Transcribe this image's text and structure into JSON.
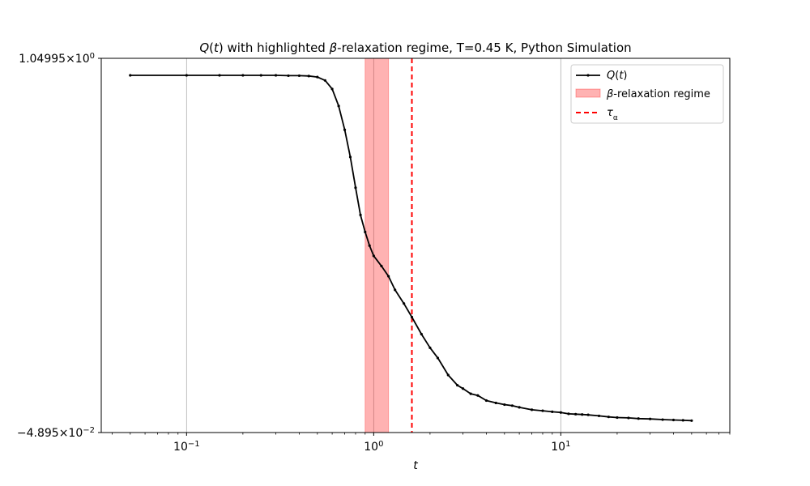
{
  "chart_data": {
    "type": "line",
    "title": "Q(t) with highlighted β-relaxation regime, T=0.45 K, Python Simulation",
    "xlabel": "t",
    "ylabel": "",
    "x_scale": "log",
    "xlim": [
      0.035,
      80
    ],
    "ylim": [
      -0.04895,
      1.04995
    ],
    "x_ticks": [
      {
        "value": 0.1,
        "base": "10",
        "exp": "−1"
      },
      {
        "value": 1,
        "base": "10",
        "exp": "0"
      },
      {
        "value": 10,
        "base": "10",
        "exp": "1"
      }
    ],
    "y_ticks": [
      {
        "value": 1.04995,
        "mantissa": "1.04995",
        "base": "10",
        "exp": "0"
      },
      {
        "value": -0.04895,
        "mantissa": "−4.895",
        "base": "10",
        "exp": "−2"
      }
    ],
    "grid": "x-major",
    "legend_position": "top-right",
    "series": [
      {
        "name": "Q(t)",
        "color": "#000000",
        "x": [
          0.05,
          0.1,
          0.15,
          0.2,
          0.25,
          0.3,
          0.35,
          0.4,
          0.45,
          0.5,
          0.55,
          0.6,
          0.65,
          0.7,
          0.75,
          0.8,
          0.85,
          0.9,
          0.95,
          1.0,
          1.1,
          1.2,
          1.3,
          1.45,
          1.6,
          1.8,
          2.0,
          2.2,
          2.5,
          2.8,
          3.0,
          3.3,
          3.6,
          4.0,
          4.5,
          5.0,
          5.5,
          6.0,
          7.0,
          8.0,
          9.0,
          10.0,
          11.0,
          12.0,
          13.0,
          14.0,
          16.0,
          18.0,
          20.0,
          23.0,
          26.0,
          30.0,
          35.0,
          40.0,
          45.0,
          50.0
        ],
        "y": [
          1.0,
          1.0,
          1.0,
          1.0,
          1.0,
          1.0,
          0.999,
          0.999,
          0.998,
          0.995,
          0.985,
          0.96,
          0.91,
          0.84,
          0.76,
          0.67,
          0.59,
          0.54,
          0.5,
          0.47,
          0.44,
          0.41,
          0.37,
          0.33,
          0.29,
          0.24,
          0.2,
          0.17,
          0.12,
          0.09,
          0.08,
          0.065,
          0.06,
          0.045,
          0.038,
          0.033,
          0.03,
          0.025,
          0.018,
          0.015,
          0.012,
          0.01,
          0.006,
          0.005,
          0.004,
          0.003,
          0.0,
          -0.003,
          -0.005,
          -0.006,
          -0.008,
          -0.009,
          -0.011,
          -0.012,
          -0.013,
          -0.014
        ]
      }
    ],
    "shaded_regions": [
      {
        "name": "β-relaxation regime",
        "x_start": 0.9,
        "x_end": 1.2,
        "color": "#ff0000",
        "alpha": 0.3
      }
    ],
    "vertical_lines": [
      {
        "name": "τ_α",
        "x": 1.6,
        "color": "#ff0000",
        "style": "dashed"
      }
    ]
  }
}
